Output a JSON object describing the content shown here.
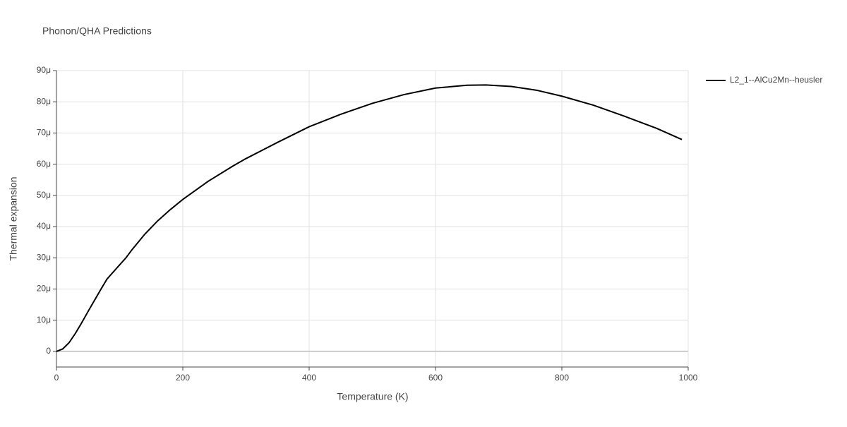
{
  "chart_data": {
    "type": "line",
    "title": "Phonon/QHA Predictions",
    "x_label": "Temperature (K)",
    "y_label": "Thermal expansion",
    "x": [
      0,
      10,
      20,
      30,
      40,
      50,
      60,
      70,
      80,
      110,
      120,
      140,
      160,
      180,
      200,
      240,
      280,
      300,
      350,
      400,
      450,
      500,
      550,
      600,
      650,
      680,
      720,
      760,
      800,
      850,
      900,
      950,
      990
    ],
    "series": [
      {
        "name": "L2_1--AlCu2Mn--heusler",
        "color": "#000000",
        "values": [
          0,
          8e-07,
          2.8e-06,
          5.8e-06,
          9.2e-06,
          1.28e-05,
          1.63e-05,
          1.98e-05,
          2.32e-05,
          3e-05,
          3.27e-05,
          3.76e-05,
          4.18e-05,
          4.54e-05,
          4.87e-05,
          5.45e-05,
          5.95e-05,
          6.18e-05,
          6.7e-05,
          7.2e-05,
          7.6e-05,
          7.95e-05,
          8.23e-05,
          8.44e-05,
          8.53e-05,
          8.54e-05,
          8.49e-05,
          8.37e-05,
          8.18e-05,
          7.89e-05,
          7.53e-05,
          7.15e-05,
          6.79e-05
        ]
      }
    ],
    "xlim": [
      0,
      1000
    ],
    "xticks": [
      0,
      200,
      400,
      600,
      800,
      1000
    ],
    "ylim": [
      -5e-06,
      9e-05
    ],
    "yticks": [
      {
        "value": 0,
        "label": "0"
      },
      {
        "value": 1e-05,
        "label": "10μ"
      },
      {
        "value": 2e-05,
        "label": "20μ"
      },
      {
        "value": 3e-05,
        "label": "30μ"
      },
      {
        "value": 4e-05,
        "label": "40μ"
      },
      {
        "value": 5e-05,
        "label": "50μ"
      },
      {
        "value": 6e-05,
        "label": "60μ"
      },
      {
        "value": 7e-05,
        "label": "70μ"
      },
      {
        "value": 8e-05,
        "label": "80μ"
      },
      {
        "value": 9e-05,
        "label": "90μ"
      }
    ],
    "grid": true,
    "legend": "top-right"
  }
}
